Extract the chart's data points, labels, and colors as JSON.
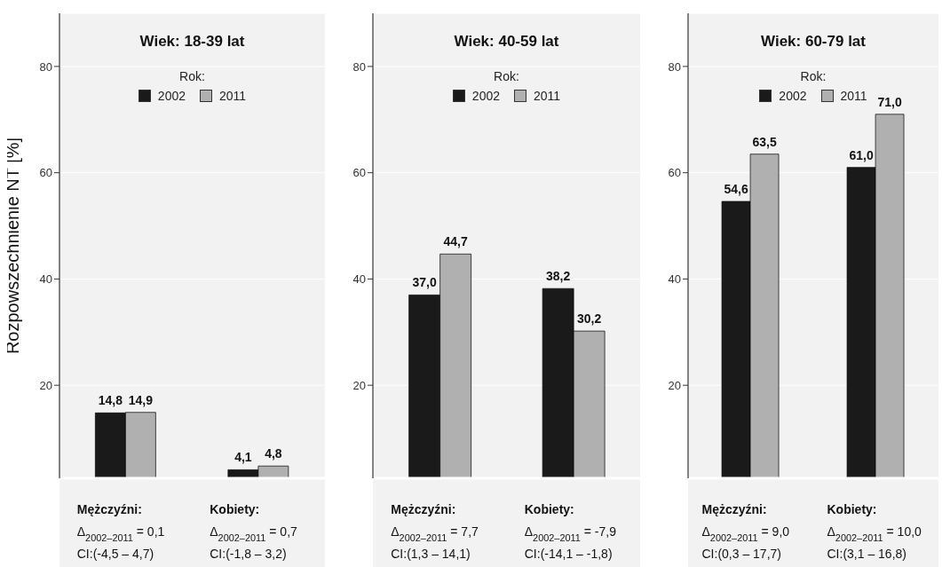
{
  "chart_data": [
    {
      "type": "bar",
      "title": "Wiek: 18-39 lat",
      "ylabel": "Rozpowszechnienie NT [%]",
      "legend_title": "Rok:",
      "legend": "top",
      "grid": "y",
      "categories": [
        null,
        null
      ],
      "ylim": [
        2.5,
        90
      ],
      "yticks": [
        20,
        40,
        60,
        80
      ],
      "series": [
        {
          "name": "2002",
          "color": "#1a1a1a",
          "values": [
            14.8,
            4.1
          ],
          "value_labels": [
            "14,8",
            "4,1"
          ]
        },
        {
          "name": "2011",
          "color": "#b0b0b0",
          "values": [
            14.9,
            4.8
          ],
          "value_labels": [
            "14,9",
            "4,8"
          ]
        }
      ],
      "annotations": [
        "Mężczyźni:",
        "Δ$_{2002–2011}$ = 0,1",
        "CI:(-4,5 – 4,7)",
        "Kobiety:",
        "Δ$_{2002–2011}$ = 0,7",
        "CI:(-1,8 – 3,2)"
      ]
    },
    {
      "type": "bar",
      "title": "Wiek: 40-59 lat",
      "legend_title": "Rok:",
      "legend": "top",
      "grid": "y",
      "categories": [
        null,
        null
      ],
      "ylim": [
        2.5,
        90
      ],
      "yticks": [
        20,
        40,
        60,
        80
      ],
      "series": [
        {
          "name": "2002",
          "color": "#1a1a1a",
          "values": [
            37.0,
            38.2
          ],
          "value_labels": [
            "37,0",
            "38,2"
          ]
        },
        {
          "name": "2011",
          "color": "#b0b0b0",
          "values": [
            44.7,
            30.2
          ],
          "value_labels": [
            "44,7",
            "30,2"
          ]
        }
      ],
      "annotations": [
        "Mężczyźni:",
        "Δ$_{2002–2011}$ = 7,7",
        "CI:(1,3 – 14,1)",
        "Kobiety:",
        "Δ$_{2002–2011}$ = -7,9",
        "CI:(-14,1 – -1,8)"
      ]
    },
    {
      "type": "bar",
      "title": "Wiek: 60-79 lat",
      "legend_title": "Rok:",
      "legend": "top",
      "grid": "y",
      "categories": [
        null,
        null
      ],
      "ylim": [
        2.5,
        90
      ],
      "yticks": [
        20,
        40,
        60,
        80
      ],
      "series": [
        {
          "name": "2002",
          "color": "#1a1a1a",
          "values": [
            54.6,
            61.0
          ],
          "value_labels": [
            "54,6",
            "61,0"
          ]
        },
        {
          "name": "2011",
          "color": "#b0b0b0",
          "values": [
            63.5,
            71.0
          ],
          "value_labels": [
            "63,5",
            "71,0"
          ]
        }
      ],
      "annotations": [
        "Mężczyźni:",
        "Δ$_{2002–2011}$ = 9,0",
        "CI:(0,3 – 17,7)",
        "Kobiety:",
        "Δ$_{2002–2011}$ = 10,0",
        "CI:(3,1 – 16,8)"
      ]
    }
  ]
}
